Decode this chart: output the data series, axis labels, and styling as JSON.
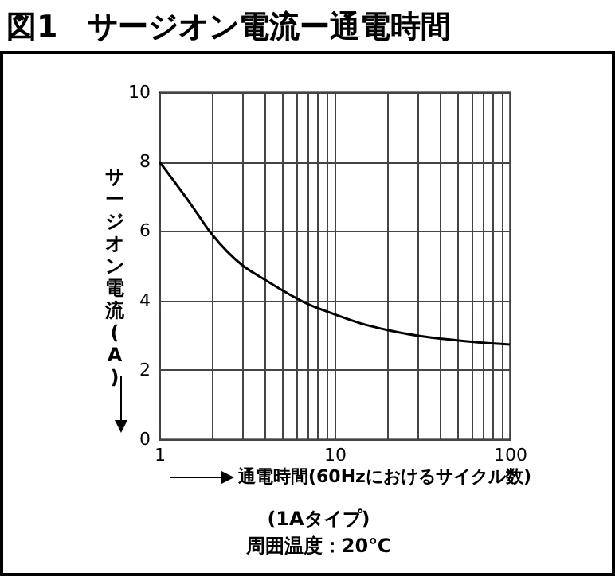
{
  "chart_data": {
    "type": "line",
    "title": "図1　サージオン電流ー通電時間",
    "xlabel": "通電時間(60Hzにおけるサイクル数)",
    "ylabel": "サージオン電流(A)",
    "annotations": [
      "(1Aタイプ)",
      "周囲温度：20℃"
    ],
    "x": [
      1,
      1.5,
      2,
      3,
      4,
      5,
      7,
      10,
      15,
      20,
      30,
      50,
      70,
      100
    ],
    "series": [
      {
        "color": "#000000",
        "values": [
          8,
          6.8,
          5.9,
          5.0,
          4.6,
          4.3,
          3.9,
          3.6,
          3.3,
          3.15,
          2.98,
          2.85,
          2.78,
          2.73
        ]
      }
    ],
    "log": "x",
    "xlim": [
      1,
      100
    ],
    "ylim": [
      0,
      10
    ],
    "xticks": [
      1,
      {
        "value": 2,
        "label": null
      },
      {
        "value": 3,
        "label": null
      },
      {
        "value": 4,
        "label": null
      },
      {
        "value": 5,
        "label": null
      },
      {
        "value": 6,
        "label": null
      },
      {
        "value": 7,
        "label": null
      },
      {
        "value": 8,
        "label": null
      },
      {
        "value": 9,
        "label": null
      },
      10,
      {
        "value": 20,
        "label": null
      },
      {
        "value": 30,
        "label": null
      },
      {
        "value": 40,
        "label": null
      },
      {
        "value": 50,
        "label": null
      },
      {
        "value": 60,
        "label": null
      },
      {
        "value": 70,
        "label": null
      },
      {
        "value": 80,
        "label": null
      },
      {
        "value": 90,
        "label": null
      },
      100
    ],
    "yticks": [
      0,
      2,
      4,
      6,
      8,
      10
    ],
    "grid": true,
    "marker": "none",
    "line_style": "solid"
  }
}
